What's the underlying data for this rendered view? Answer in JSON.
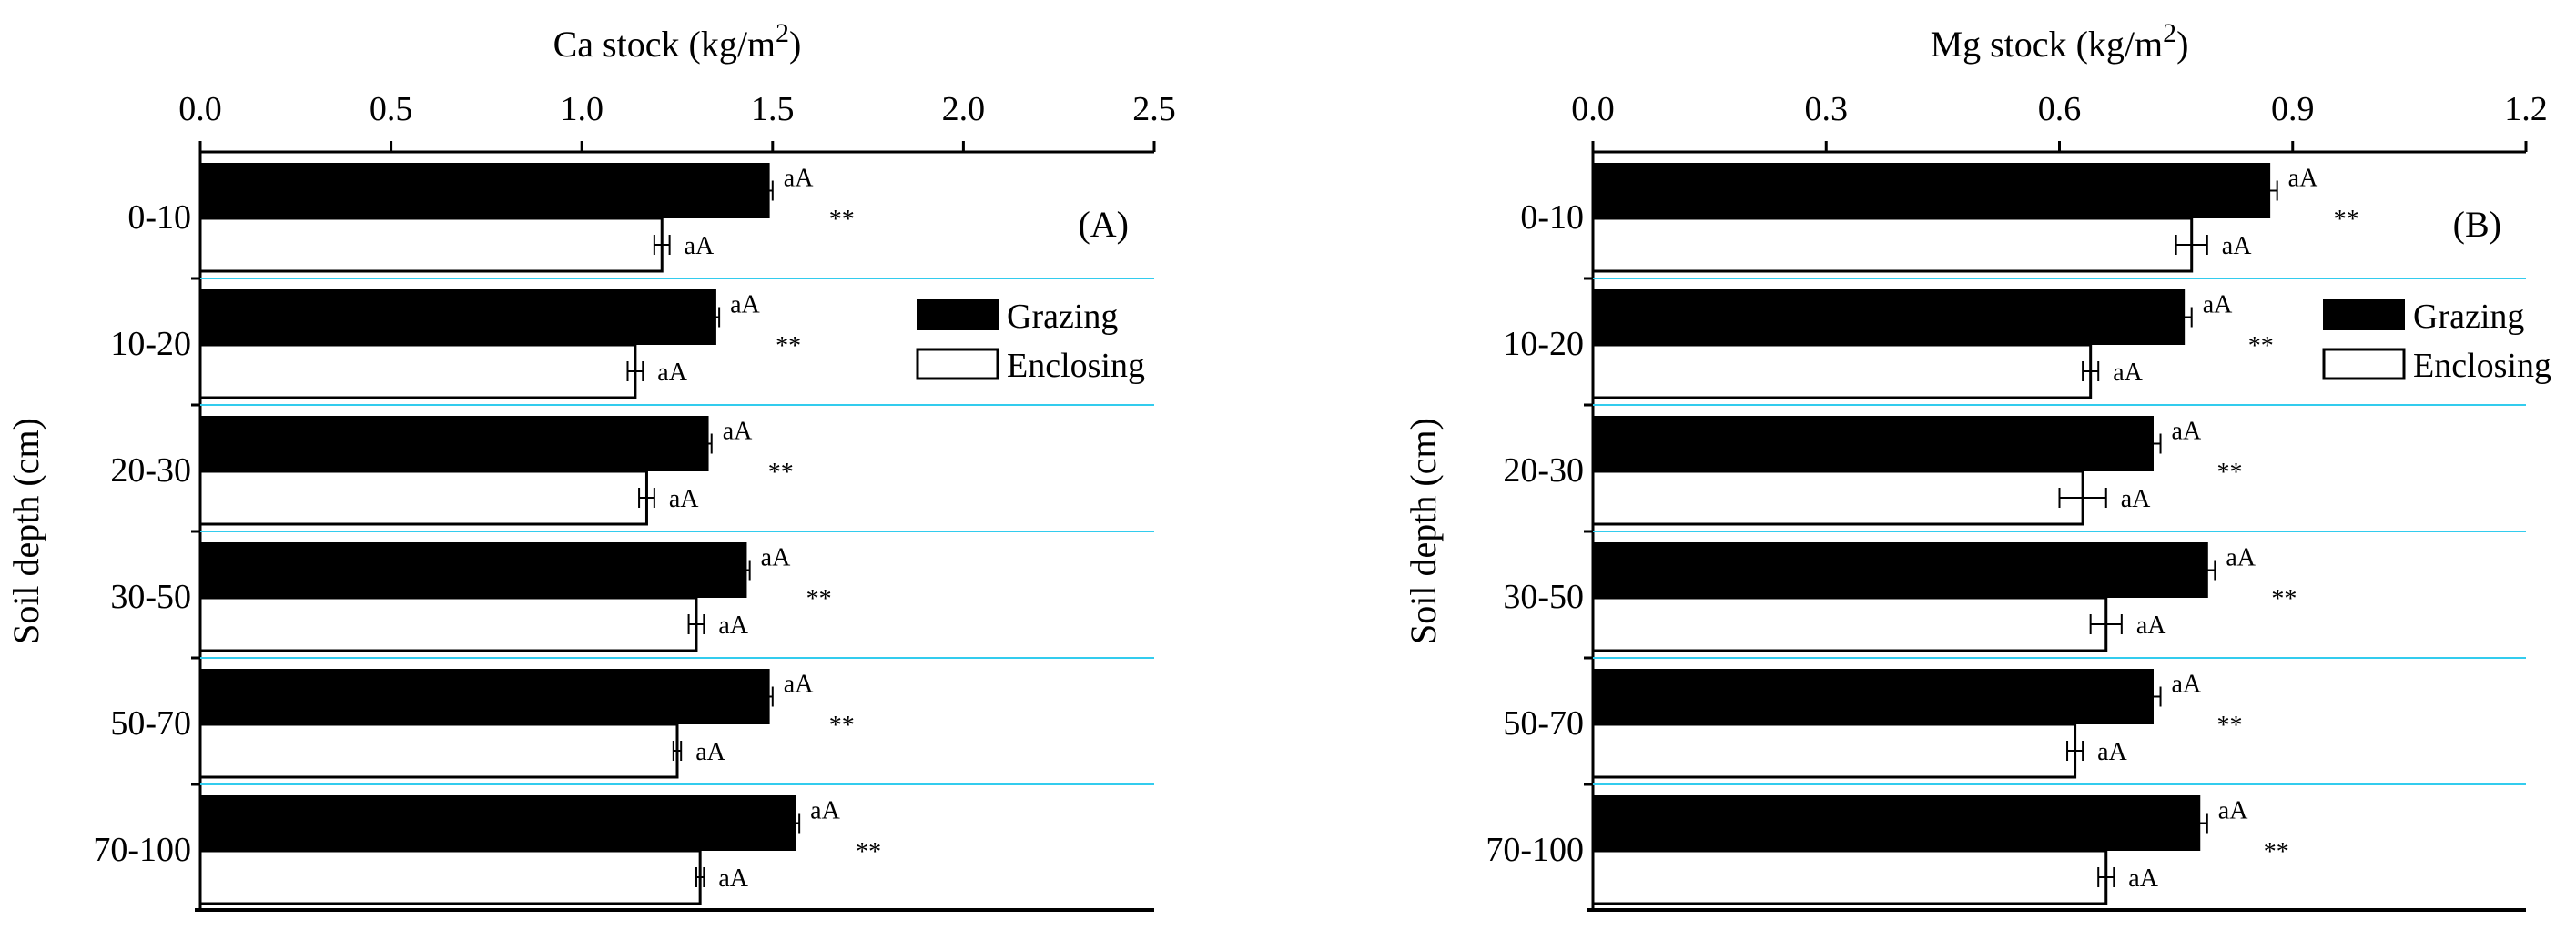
{
  "colors": {
    "grazing_fill": "#000000",
    "enclosing_fill": "#ffffff",
    "separator_line": "#33ccee",
    "axis": "#000000"
  },
  "ylabel": "Soil depth (cm)",
  "chart_data": [
    {
      "type": "bar",
      "orientation": "horizontal",
      "panel_label": "(A)",
      "title_text": "Ca stock (kg/m",
      "title_sup": "2",
      "title_close": ")",
      "xlim": [
        0,
        2.5
      ],
      "xticks": [
        "0.0",
        "0.5",
        "1.0",
        "1.5",
        "2.0",
        "2.5"
      ],
      "tick_values": [
        0,
        0.5,
        1.0,
        1.5,
        2.0,
        2.5
      ],
      "categories": [
        "0-10",
        "10-20",
        "20-30",
        "30-50",
        "50-70",
        "70-100"
      ],
      "legend_position": "top-right",
      "series": [
        {
          "name": "Grazing",
          "values": [
            1.49,
            1.35,
            1.33,
            1.43,
            1.49,
            1.56
          ],
          "errors": [
            0.01,
            0.01,
            0.01,
            0.01,
            0.01,
            0.01
          ],
          "labels": [
            "aA",
            "aA",
            "aA",
            "aA",
            "aA",
            "aA"
          ]
        },
        {
          "name": "Enclosing",
          "values": [
            1.21,
            1.14,
            1.17,
            1.3,
            1.25,
            1.31
          ],
          "errors": [
            0.02,
            0.02,
            0.02,
            0.02,
            0.01,
            0.01
          ],
          "labels": [
            "aA",
            "aA",
            "aA",
            "aA",
            "aA",
            "aA"
          ]
        }
      ],
      "significance": [
        "**",
        "**",
        "**",
        "**",
        "**",
        "**"
      ]
    },
    {
      "type": "bar",
      "orientation": "horizontal",
      "panel_label": "(B)",
      "title_text": "Mg stock (kg/m",
      "title_sup": "2",
      "title_close": ")",
      "xlim": [
        0,
        1.2
      ],
      "xticks": [
        "0.0",
        "0.3",
        "0.6",
        "0.9",
        "1.2"
      ],
      "tick_values": [
        0,
        0.3,
        0.6,
        0.9,
        1.2
      ],
      "categories": [
        "0-10",
        "10-20",
        "20-30",
        "30-50",
        "50-70",
        "70-100"
      ],
      "legend_position": "top-right",
      "series": [
        {
          "name": "Grazing",
          "values": [
            0.87,
            0.76,
            0.72,
            0.79,
            0.72,
            0.78
          ],
          "errors": [
            0.01,
            0.01,
            0.01,
            0.01,
            0.01,
            0.01
          ],
          "labels": [
            "aA",
            "aA",
            "aA",
            "aA",
            "aA",
            "aA"
          ]
        },
        {
          "name": "Enclosing",
          "values": [
            0.77,
            0.64,
            0.63,
            0.66,
            0.62,
            0.66
          ],
          "errors": [
            0.02,
            0.01,
            0.03,
            0.02,
            0.01,
            0.01
          ],
          "labels": [
            "aA",
            "aA",
            "aA",
            "aA",
            "aA",
            "aA"
          ]
        }
      ],
      "significance": [
        "**",
        "**",
        "**",
        "**",
        "**",
        "**"
      ]
    }
  ]
}
